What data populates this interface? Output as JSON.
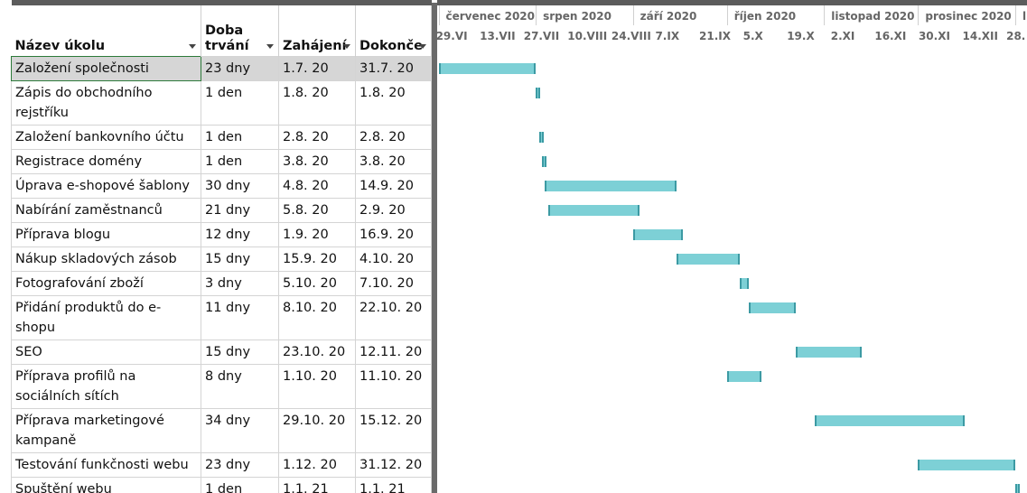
{
  "table": {
    "columns": [
      "Název úkolu",
      "Doba trvání",
      "Zahájení",
      "Dokonče"
    ],
    "rows": [
      [
        "Založení společnosti",
        "23 dny",
        "1.7. 20",
        "31.7. 20"
      ],
      [
        "Zápis do obchodního rejstříku",
        "1 den",
        "1.8. 20",
        "1.8. 20"
      ],
      [
        "Založení bankovního účtu",
        "1 den",
        "2.8. 20",
        "2.8. 20"
      ],
      [
        "Registrace domény",
        "1 den",
        "3.8. 20",
        "3.8. 20"
      ],
      [
        "Úprava e-shopové šablony",
        "30 dny",
        "4.8. 20",
        "14.9. 20"
      ],
      [
        "Nabírání zaměstnanců",
        "21 dny",
        "5.8. 20",
        "2.9. 20"
      ],
      [
        "Příprava blogu",
        "12 dny",
        "1.9. 20",
        "16.9. 20"
      ],
      [
        "Nákup skladových zásob",
        "15 dny",
        "15.9. 20",
        "4.10. 20"
      ],
      [
        "Fotografování zboží",
        "3 dny",
        "5.10. 20",
        "7.10. 20"
      ],
      [
        "Přidání produktů do e-shopu",
        "11 dny",
        "8.10. 20",
        "22.10. 20"
      ],
      [
        "SEO",
        "15 dny",
        "23.10. 20",
        "12.11. 20"
      ],
      [
        "Příprava profilů na sociálních sítích",
        "8 dny",
        "1.10. 20",
        "11.10. 20"
      ],
      [
        "Příprava marketingové kampaně",
        "34 dny",
        "29.10. 20",
        "15.12. 20"
      ],
      [
        "Testování funkčnosti webu",
        "23 dny",
        "1.12. 20",
        "31.12. 20"
      ],
      [
        "Spuštění webu",
        "1 den",
        "1.1. 21",
        "1.1. 21"
      ]
    ]
  },
  "timescale": {
    "months": [
      "červenec 2020",
      "srpen 2020",
      "září 2020",
      "říjen 2020",
      "listopad 2020",
      "prosinec 2020",
      "l"
    ],
    "weeks": [
      "29.VI",
      "13.VII",
      "27.VII",
      "10.VIII",
      "24.VIII",
      "7.IX",
      "21.IX",
      "5.X",
      "19.X",
      "2.XI",
      "16.XI",
      "30.XI",
      "14.XII",
      "28."
    ]
  }
}
